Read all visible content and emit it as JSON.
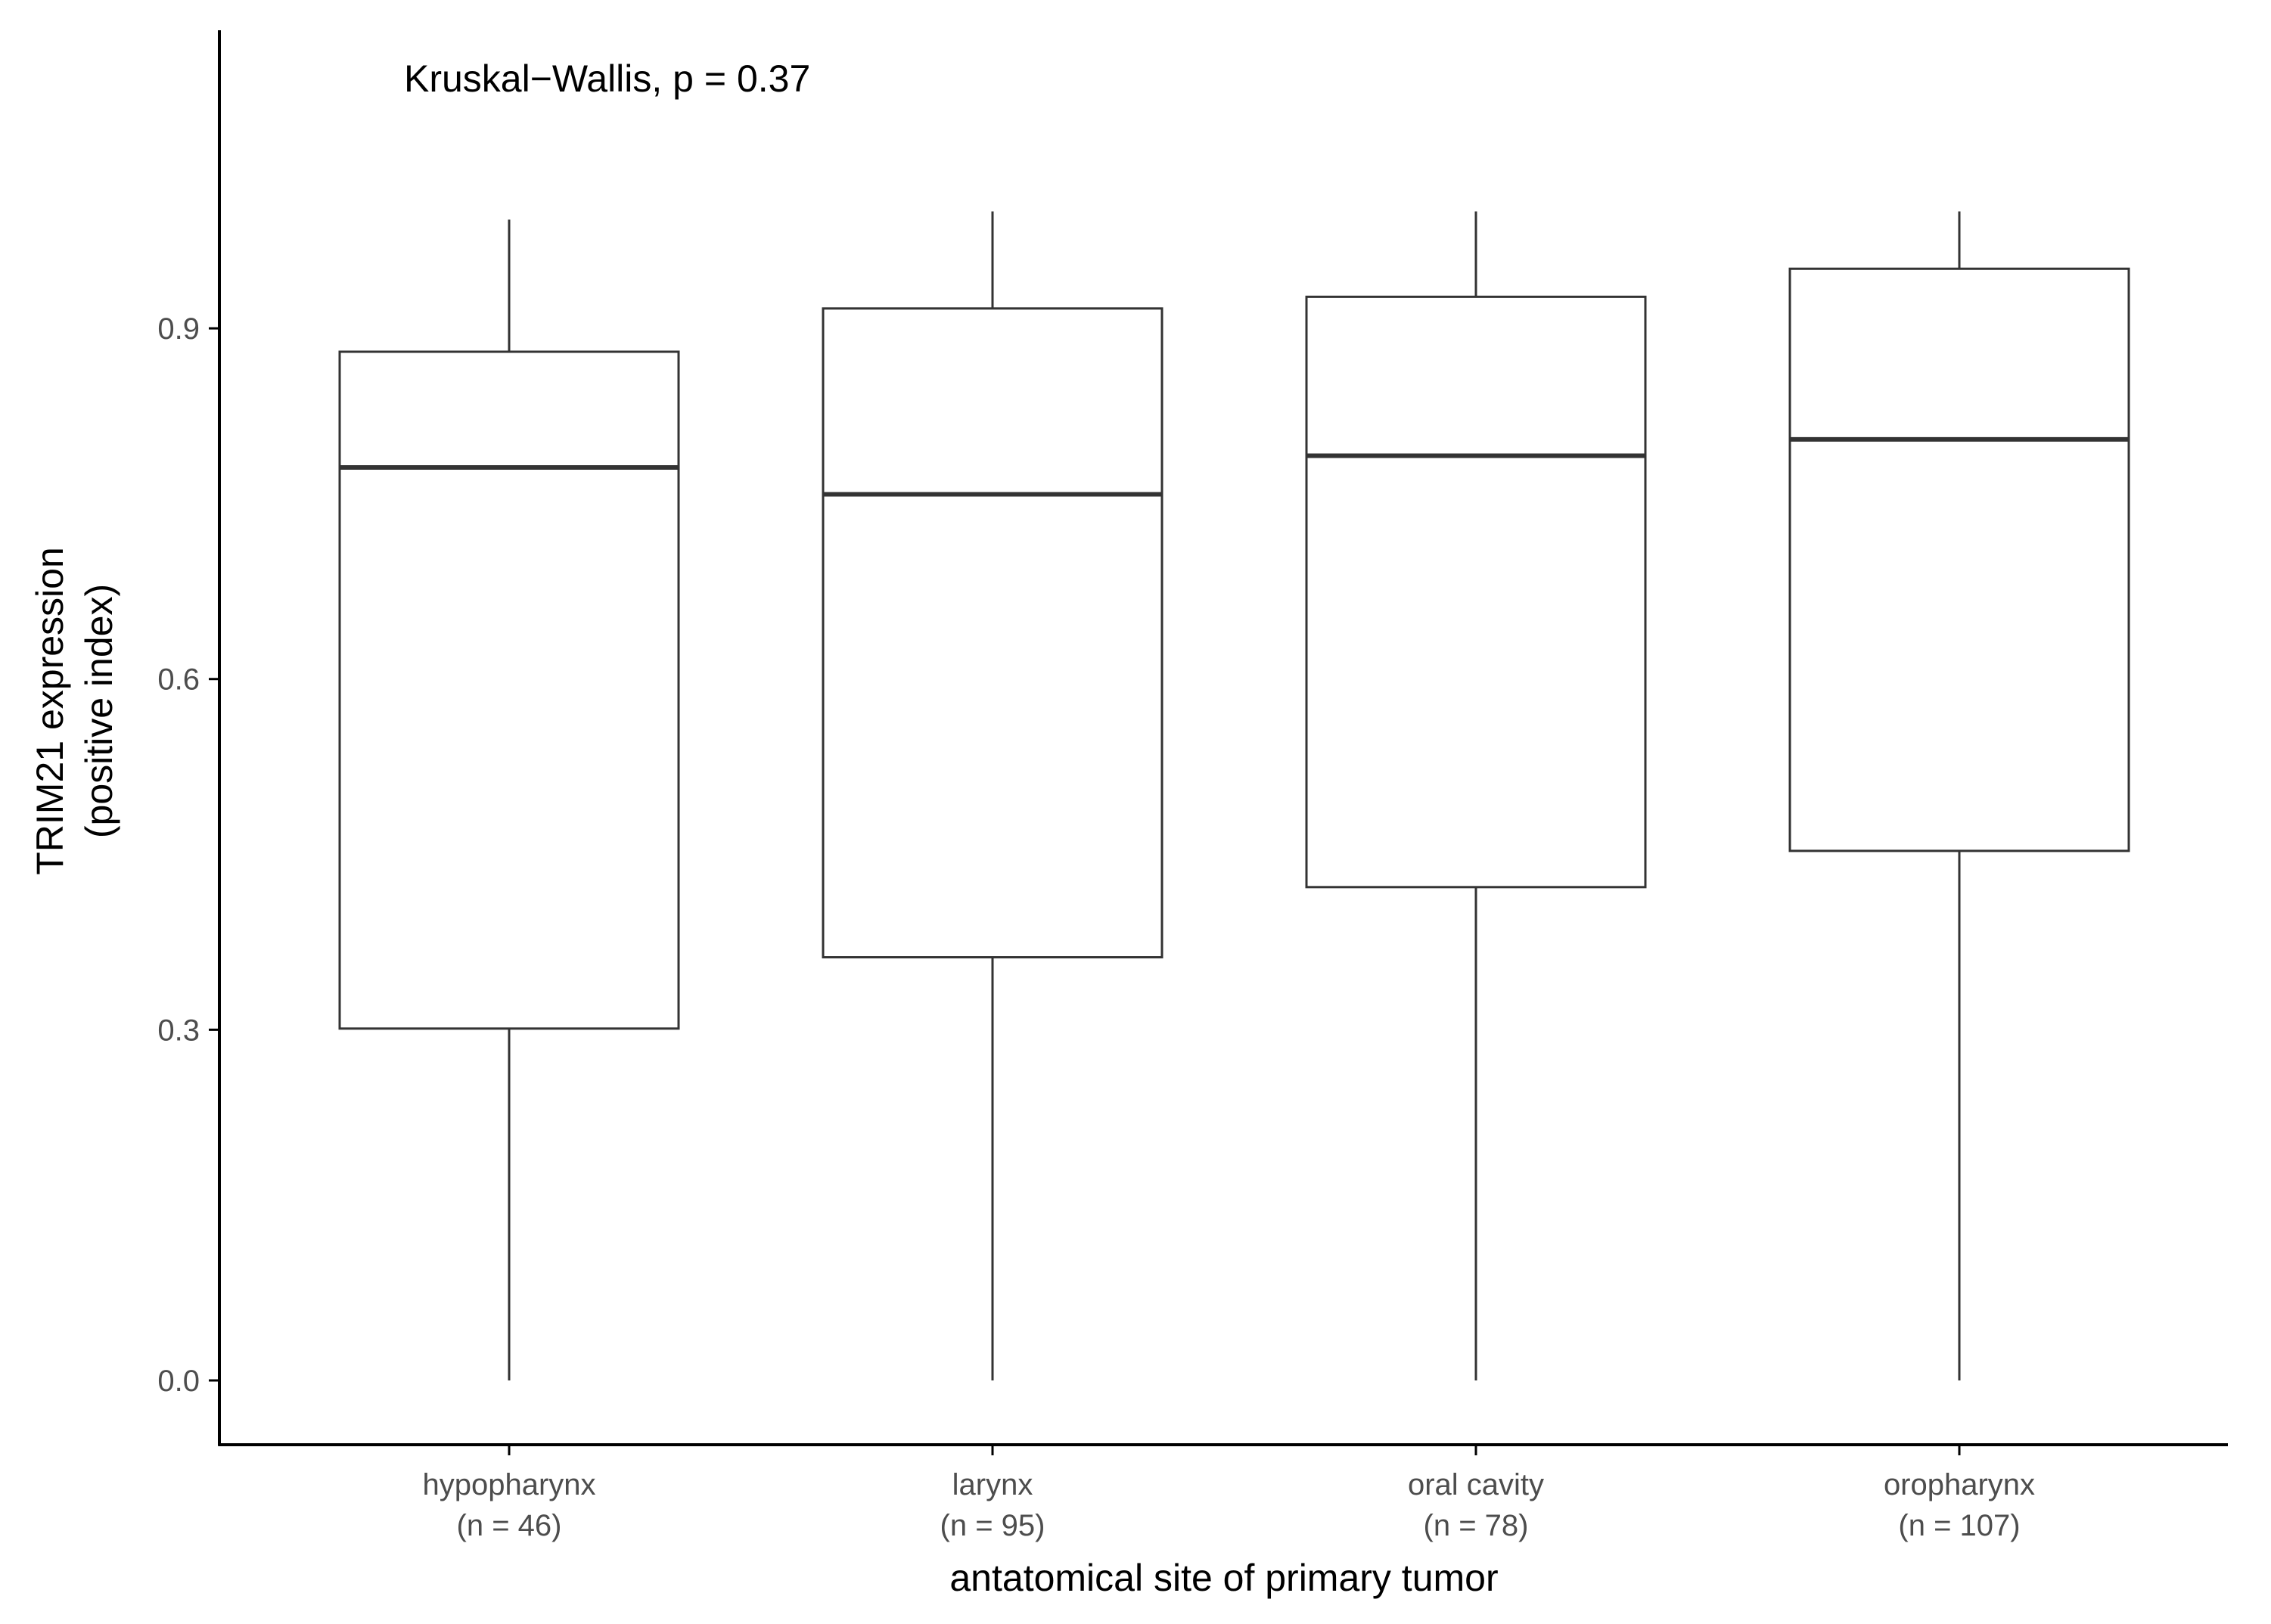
{
  "chart_data": {
    "type": "boxplot",
    "title": "",
    "annotation": "Kruskal−Wallis, p = 0.37",
    "xlabel": "antatomical site of primary tumor",
    "ylabel_line1": "TRIM21 expression",
    "ylabel_line2": "(positive index)",
    "ylim": [
      -0.055,
      1.155
    ],
    "yticks": [
      0.0,
      0.3,
      0.6,
      0.9
    ],
    "ytick_labels": [
      "0.0",
      "0.3",
      "0.6",
      "0.9"
    ],
    "grid": false,
    "categories": [
      {
        "name": "hypopharynx",
        "n_label": "(n = 46)"
      },
      {
        "name": "larynx",
        "n_label": "(n = 95)"
      },
      {
        "name": "oral cavity",
        "n_label": "(n = 78)"
      },
      {
        "name": "oropharynx",
        "n_label": "(n = 107)"
      }
    ],
    "boxes": [
      {
        "whisker_low": 0.0,
        "q1": 0.301,
        "median": 0.781,
        "q3": 0.88,
        "whisker_high": 0.993
      },
      {
        "whisker_low": 0.0,
        "q1": 0.362,
        "median": 0.758,
        "q3": 0.917,
        "whisker_high": 1.0
      },
      {
        "whisker_low": 0.0,
        "q1": 0.422,
        "median": 0.791,
        "q3": 0.927,
        "whisker_high": 1.0
      },
      {
        "whisker_low": 0.0,
        "q1": 0.453,
        "median": 0.805,
        "q3": 0.951,
        "whisker_high": 1.0
      }
    ],
    "colors": {
      "box_stroke": "#333333",
      "box_fill": "#ffffff",
      "axis": "#000000",
      "tick_label": "#4d4d4d"
    }
  }
}
